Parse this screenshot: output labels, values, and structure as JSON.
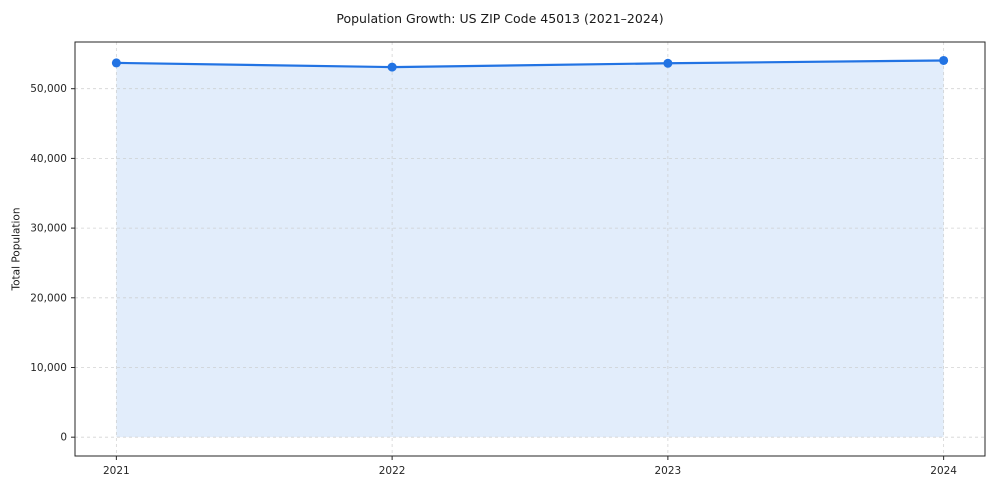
{
  "figure": {
    "title": "Population Growth: US ZIP Code 45013 (2021–2024)"
  },
  "chart_data": {
    "type": "area",
    "title": "Population Growth: US ZIP Code 45013 (2021–2024)",
    "xlabel": "",
    "ylabel": "Total Population",
    "x": [
      2021,
      2022,
      2023,
      2024
    ],
    "categories": [
      "2021",
      "2022",
      "2023",
      "2024"
    ],
    "series": [
      {
        "name": "Total Population",
        "values": [
          53700,
          53100,
          53650,
          54050
        ]
      }
    ],
    "xlim": [
      2020.85,
      2024.15
    ],
    "ylim": [
      -2700,
      56700
    ],
    "yticks": [
      0,
      10000,
      20000,
      30000,
      40000,
      50000
    ],
    "ytick_labels": [
      "0",
      "10,000",
      "20,000",
      "30,000",
      "40,000",
      "50,000"
    ],
    "grid": true,
    "grid_style": "dashed",
    "legend": "none",
    "line_color": "#2273e3",
    "marker_color": "#2273e3",
    "fill_color": "#2273e3",
    "fill_opacity": 0.13,
    "grid_color": "#c9c9c9",
    "axis_color": "#262626",
    "baseline": 0
  }
}
